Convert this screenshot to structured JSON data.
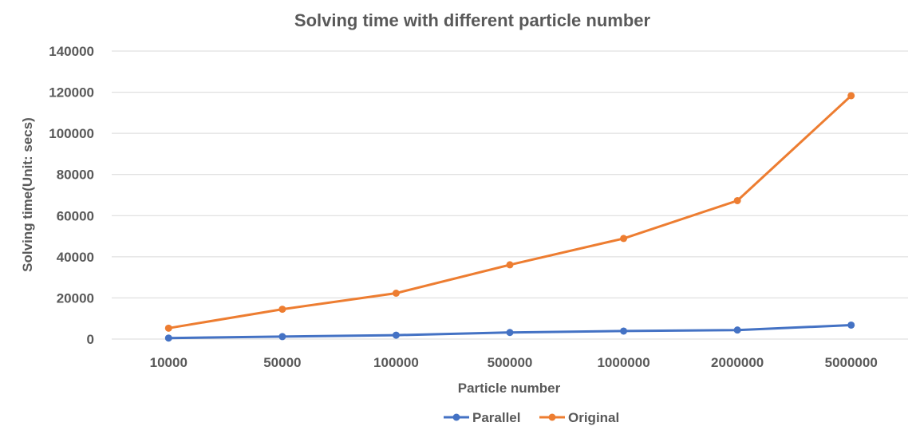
{
  "chart_data": {
    "type": "line",
    "title": "Solving time with different particle number",
    "xlabel": "Particle number",
    "ylabel": "Solving time(Unit: secs)",
    "categories": [
      "10000",
      "50000",
      "100000",
      "500000",
      "1000000",
      "2000000",
      "5000000"
    ],
    "ylim": [
      0,
      140000
    ],
    "yticks": [
      "0",
      "20000",
      "40000",
      "60000",
      "80000",
      "100000",
      "120000",
      "140000"
    ],
    "grid": true,
    "legend_position": "bottom",
    "series": [
      {
        "name": "Parallel",
        "color": "#4472c4",
        "values": [
          500,
          1200,
          1900,
          3200,
          3900,
          4400,
          6800
        ]
      },
      {
        "name": "Original",
        "color": "#ed7d31",
        "values": [
          5300,
          14500,
          22300,
          36100,
          48900,
          67300,
          118300
        ]
      }
    ]
  }
}
